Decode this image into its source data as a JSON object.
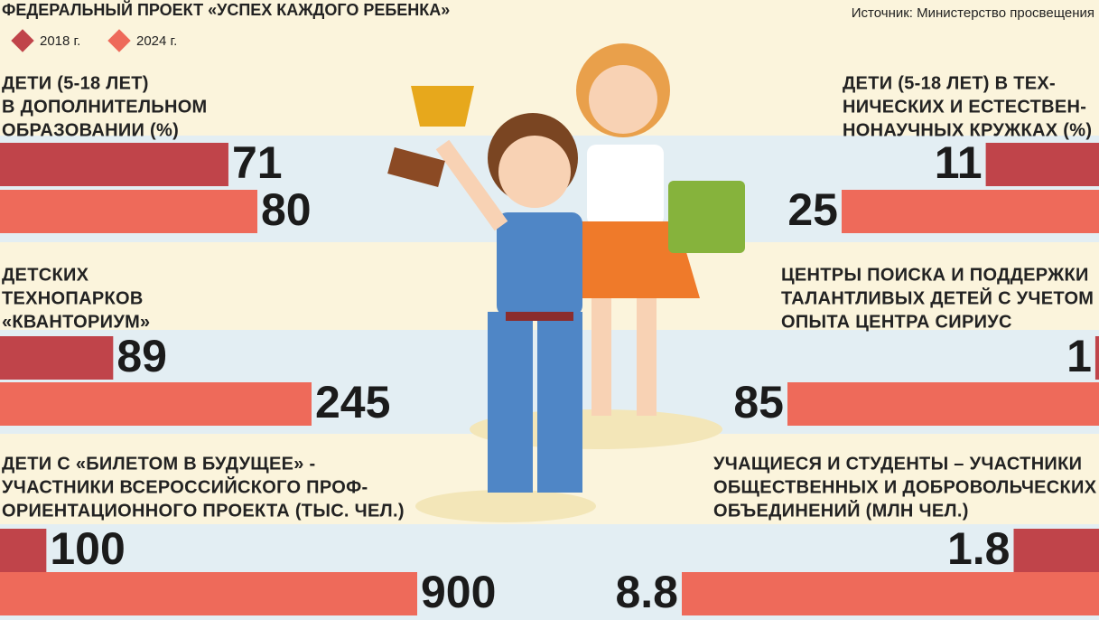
{
  "header": {
    "title": "ФЕДЕРАЛЬНЫЙ ПРОЕКТ «УСПЕХ КАЖДОГО РЕБЕНКА»",
    "source": "Источник: Министерство просвещения",
    "legend": [
      {
        "name": "2018 г.",
        "color": "#c0444a"
      },
      {
        "name": "2024 г.",
        "color": "#ee6a5a"
      }
    ]
  },
  "chart_data": [
    {
      "type": "bar",
      "title": [
        "ДЕТИ (5-18 ЛЕТ)",
        "В ДОПОЛНИТЕЛЬНОМ",
        "ОБРАЗОВАНИИ (%)"
      ],
      "values": [
        71,
        80
      ]
    },
    {
      "type": "bar",
      "title": [
        "ДЕТИ (5-18 ЛЕТ) В ТЕХ-",
        "НИЧЕСКИХ И ЕСТЕСТВЕН-",
        "НОНАУЧНЫХ КРУЖКАХ (%)"
      ],
      "values": [
        11,
        25
      ]
    },
    {
      "type": "bar",
      "title": [
        "ДЕТСКИХ",
        "ТЕХНОПАРКОВ",
        "«КВАНТОРИУМ»"
      ],
      "values": [
        89,
        245
      ]
    },
    {
      "type": "bar",
      "title": [
        "ЦЕНТРЫ ПОИСКА И ПОДДЕРЖКИ",
        "ТАЛАНТЛИВЫХ ДЕТЕЙ С УЧЕТОМ",
        "ОПЫТА ЦЕНТРА СИРИУС"
      ],
      "values": [
        1,
        85
      ]
    },
    {
      "type": "bar",
      "title": [
        "ДЕТИ С «БИЛЕТОМ В БУДУЩЕЕ» -",
        "УЧАСТНИКИ ВСЕРОССИЙСКОГО ПРОФ-",
        "ОРИЕНТАЦИОННОГО ПРОЕКТА (ТЫС. ЧЕЛ.)"
      ],
      "values": [
        100,
        900
      ]
    },
    {
      "type": "bar",
      "title": [
        "УЧАЩИЕСЯ И СТУДЕНТЫ – УЧАСТНИКИ",
        "ОБЩЕСТВЕННЫХ И ДОБРОВОЛЬЧЕСКИХ",
        "ОБЪЕДИНЕНИЙ (МЛН ЧЕЛ.)"
      ],
      "values": [
        1.8,
        8.8
      ]
    }
  ]
}
